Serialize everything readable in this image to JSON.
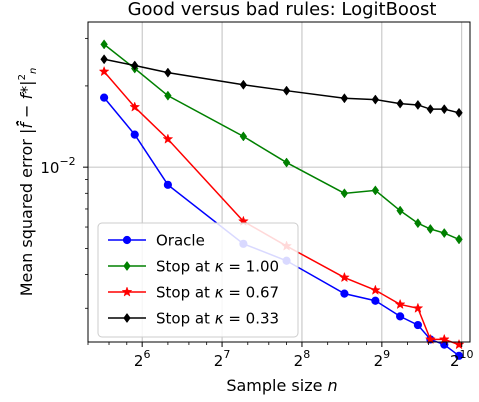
{
  "chart_data": {
    "type": "line",
    "title": "Good versus bad rules: LogitBoost",
    "xlabel": "Sample size n",
    "ylabel": "Mean squared error |f̄ˆ − f*|²ₙ",
    "x_scale": "log2",
    "y_scale": "log10",
    "xlim": [
      40,
      1100
    ],
    "ylim": [
      0.00225,
      0.0345
    ],
    "x_ticks": [
      {
        "value": 64,
        "base": "2",
        "exp": "6"
      },
      {
        "value": 128,
        "base": "2",
        "exp": "7"
      },
      {
        "value": 256,
        "base": "2",
        "exp": "8"
      },
      {
        "value": 512,
        "base": "2",
        "exp": "9"
      },
      {
        "value": 1024,
        "base": "2",
        "exp": "10"
      }
    ],
    "y_ticks": [
      {
        "value": 0.01,
        "base": "10",
        "exp": "−2"
      }
    ],
    "grid": true,
    "legend_position": "lower-left",
    "x": [
      46,
      60,
      80,
      154,
      224,
      370,
      484,
      600,
      700,
      780,
      880,
      1000
    ],
    "series": [
      {
        "name": "Oracle",
        "color": "#0000ff",
        "marker": "circle",
        "values": [
          0.0181,
          0.0132,
          0.0086,
          0.0052,
          0.0045,
          0.0034,
          0.0032,
          0.0028,
          0.0026,
          0.0023,
          0.0022,
          0.002
        ]
      },
      {
        "name": "Stop at κ = 1.00",
        "label_prefix": "Stop at ",
        "label_math": "κ",
        "label_value": " =  1.00",
        "color": "#008000",
        "marker": "diamond",
        "values": [
          0.0285,
          0.0232,
          0.0184,
          0.013,
          0.0104,
          0.008,
          0.0082,
          0.0069,
          0.0062,
          0.0059,
          0.0057,
          0.0054
        ]
      },
      {
        "name": "Stop at κ = 0.67",
        "label_prefix": "Stop at ",
        "label_math": "κ",
        "label_value": " =  0.67",
        "color": "#ff0000",
        "marker": "star",
        "values": [
          0.0226,
          0.0167,
          0.0127,
          0.0063,
          0.0051,
          0.0039,
          0.0035,
          0.0031,
          0.003,
          0.0023,
          0.0023,
          0.0022
        ]
      },
      {
        "name": "Stop at κ = 0.33",
        "label_prefix": "Stop at ",
        "label_math": "κ",
        "label_value": " =  0.33",
        "color": "#000000",
        "marker": "diamond",
        "values": [
          0.0251,
          0.0238,
          0.0224,
          0.0202,
          0.0192,
          0.018,
          0.0178,
          0.0172,
          0.017,
          0.0164,
          0.0164,
          0.0159
        ]
      }
    ]
  }
}
